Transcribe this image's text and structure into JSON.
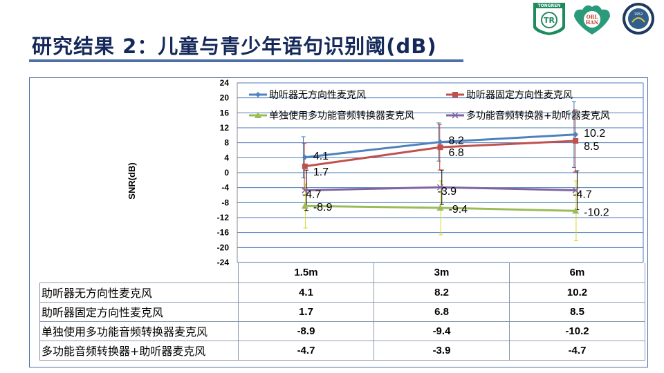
{
  "slide": {
    "title": "研究结果 2：儿童与青少年语句识别阈(dB)",
    "logos": [
      "TONGREN",
      "ORL HAN",
      "1952"
    ]
  },
  "chart_data": {
    "type": "line",
    "ylabel": "SNR(dB)",
    "xlabel": "",
    "categories": [
      "1.5m",
      "3m",
      "6m"
    ],
    "ylim": [
      -24,
      24
    ],
    "yticks": [
      24,
      20,
      16,
      12,
      8,
      4,
      0,
      -4,
      -8,
      -12,
      -16,
      -20,
      -24
    ],
    "grid": true,
    "legend": "top",
    "error_bars": true,
    "series": [
      {
        "name": "助听器无方向性麦克风",
        "values": [
          4.1,
          8.2,
          10.2
        ],
        "errors": [
          5.5,
          5.1,
          8.8
        ],
        "color": "#4f81bd",
        "marker": "diamond"
      },
      {
        "name": "助听器固定方向性麦克风",
        "values": [
          1.7,
          6.8,
          8.5
        ],
        "errors": [
          6.1,
          6.1,
          8.3
        ],
        "color": "#c0504d",
        "marker": "square"
      },
      {
        "name": "单独使用多功能音频转换器麦克风",
        "values": [
          -8.9,
          -9.4,
          -10.2
        ],
        "errors": [
          5.9,
          7.2,
          8.0
        ],
        "color": "#9bbb59",
        "marker": "triangle"
      },
      {
        "name": "多功能音频转换器+助听器麦克风",
        "values": [
          -4.7,
          -3.9,
          -4.7
        ],
        "errors": [
          5.4,
          4.6,
          5.2
        ],
        "color": "#8064a2",
        "marker": "x"
      }
    ]
  },
  "table": {
    "headers": [
      "1.5m",
      "3m",
      "6m"
    ],
    "rows": [
      {
        "label": "助听器无方向性麦克风",
        "values": [
          "4.1",
          "8.2",
          "10.2"
        ]
      },
      {
        "label": "助听器固定方向性麦克风",
        "values": [
          "1.7",
          "6.8",
          "8.5"
        ]
      },
      {
        "label": "单独使用多功能音频转换器麦克风",
        "values": [
          "-8.9",
          "-9.4",
          "-10.2"
        ]
      },
      {
        "label": "多功能音频转换器+助听器麦克风",
        "values": [
          "-4.7",
          "-3.9",
          "-4.7"
        ]
      }
    ]
  }
}
